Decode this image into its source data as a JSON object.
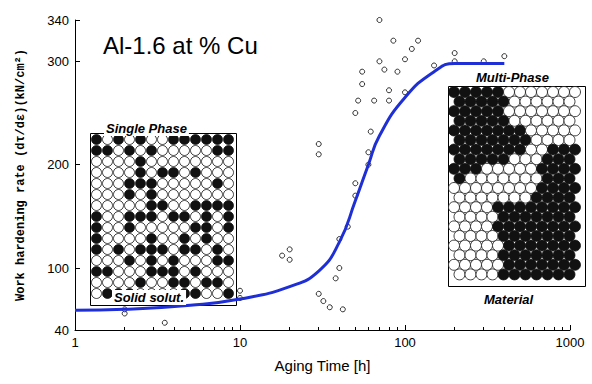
{
  "chart_data": {
    "type": "scatter",
    "title": "Al-1.6 at % Cu",
    "x_label": "Aging Time [h]",
    "y_label": "Work hardening rate (dτ/dε)(kN/cm²)",
    "log": "x",
    "grid": false,
    "xlim": [
      1,
      1000
    ],
    "xticks": [
      1,
      10,
      100,
      1000
    ],
    "ylim": [
      40,
      340
    ],
    "yticks": [
      40,
      100,
      200,
      300,
      340
    ],
    "annotations": [
      "Single Phase",
      "Solid solut.",
      "Multi-Phase",
      "Material"
    ],
    "series": [
      {
        "type": "scatter",
        "color": "#000000",
        "marker": "open_circle",
        "x": [
          2,
          2,
          3.5,
          10,
          10,
          18,
          20,
          20,
          30,
          30,
          30,
          32,
          35,
          38,
          40,
          40,
          42,
          45,
          50,
          50,
          50,
          52,
          55,
          55,
          60,
          60,
          62,
          65,
          70,
          70,
          75,
          80,
          80,
          85,
          90,
          100,
          100,
          110,
          120,
          150,
          200,
          200,
          300,
          400
        ],
        "values": [
          56,
          60,
          47,
          78,
          71,
          112,
          108,
          118,
          220,
          210,
          75,
          68,
          62,
          90,
          100,
          128,
          60,
          140,
          170,
          182,
          250,
          262,
          290,
          278,
          200,
          212,
          232,
          262,
          300,
          340,
          292,
          262,
          272,
          320,
          290,
          270,
          302,
          312,
          320,
          296,
          300,
          308,
          300,
          305
        ]
      },
      {
        "type": "line",
        "color": "#1f2fd6",
        "line_style": "solid",
        "x": [
          1,
          2,
          5,
          10,
          20,
          30,
          40,
          50,
          60,
          70,
          100,
          150,
          200,
          400
        ],
        "values": [
          59,
          60,
          64,
          70,
          82,
          97,
          125,
          165,
          200,
          228,
          265,
          290,
          298,
          298
        ]
      }
    ]
  }
}
